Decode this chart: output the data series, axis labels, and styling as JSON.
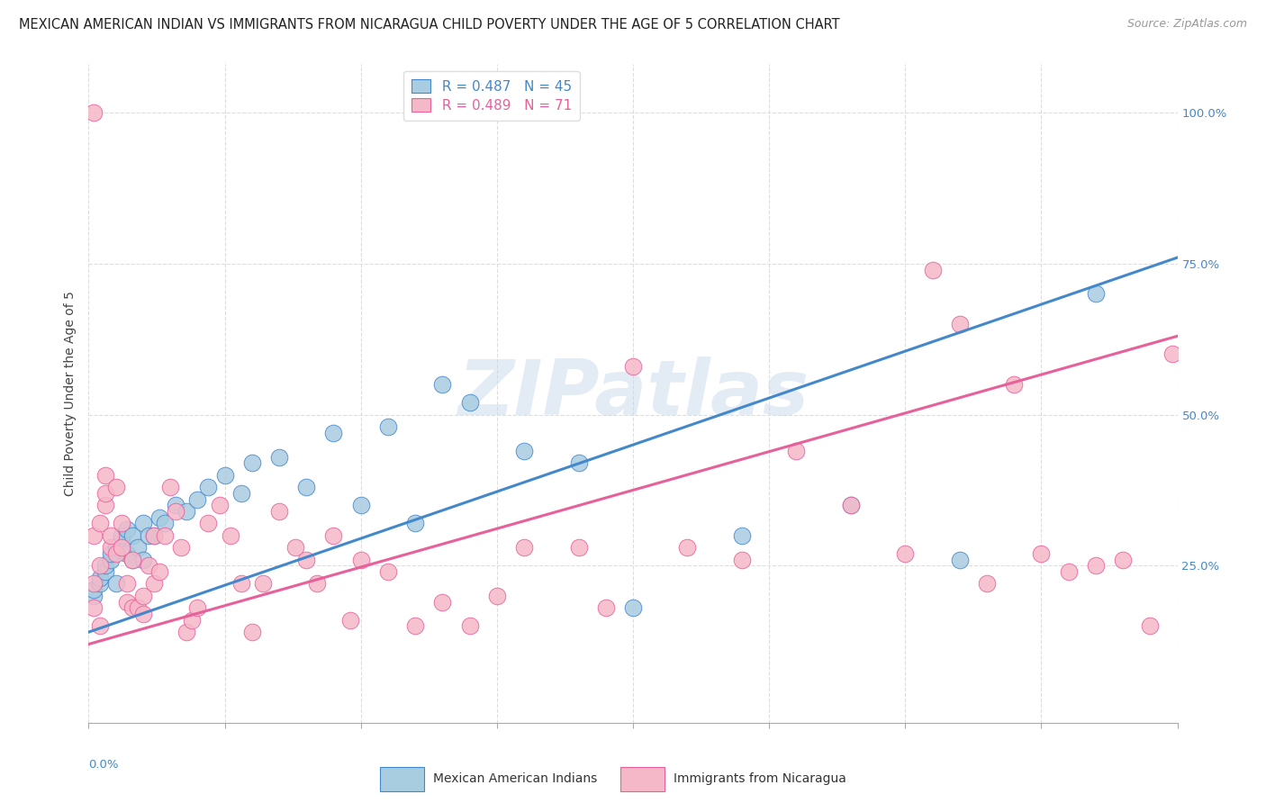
{
  "title": "MEXICAN AMERICAN INDIAN VS IMMIGRANTS FROM NICARAGUA CHILD POVERTY UNDER THE AGE OF 5 CORRELATION CHART",
  "source": "Source: ZipAtlas.com",
  "ylabel": "Child Poverty Under the Age of 5",
  "ytick_labels": [
    "25.0%",
    "50.0%",
    "75.0%",
    "100.0%"
  ],
  "ytick_values": [
    0.25,
    0.5,
    0.75,
    1.0
  ],
  "xlim": [
    0,
    0.2
  ],
  "ylim": [
    -0.01,
    1.08
  ],
  "blue_R": "0.487",
  "blue_N": "45",
  "pink_R": "0.489",
  "pink_N": "71",
  "blue_color": "#a8cce0",
  "pink_color": "#f5b8c8",
  "blue_edge_color": "#4488cc",
  "pink_edge_color": "#e8609a",
  "blue_line_color": "#4488cc",
  "pink_line_color": "#e8609a",
  "legend_label_blue": "Mexican American Indians",
  "legend_label_pink": "Immigrants from Nicaragua",
  "watermark": "ZIPatlas",
  "title_fontsize": 10.5,
  "source_fontsize": 9,
  "axis_label_fontsize": 10,
  "tick_fontsize": 9.5,
  "legend_fontsize": 11,
  "blue_dots_x": [
    0.001,
    0.001,
    0.002,
    0.002,
    0.003,
    0.003,
    0.004,
    0.004,
    0.005,
    0.005,
    0.006,
    0.006,
    0.007,
    0.007,
    0.008,
    0.008,
    0.009,
    0.01,
    0.01,
    0.011,
    0.012,
    0.013,
    0.014,
    0.016,
    0.018,
    0.02,
    0.022,
    0.025,
    0.028,
    0.03,
    0.035,
    0.04,
    0.045,
    0.05,
    0.055,
    0.06,
    0.065,
    0.07,
    0.08,
    0.09,
    0.1,
    0.12,
    0.14,
    0.16,
    0.185
  ],
  "blue_dots_y": [
    0.2,
    0.21,
    0.22,
    0.23,
    0.24,
    0.25,
    0.26,
    0.27,
    0.28,
    0.22,
    0.29,
    0.3,
    0.27,
    0.31,
    0.26,
    0.3,
    0.28,
    0.32,
    0.26,
    0.3,
    0.3,
    0.33,
    0.32,
    0.35,
    0.34,
    0.36,
    0.38,
    0.4,
    0.37,
    0.42,
    0.43,
    0.38,
    0.47,
    0.35,
    0.48,
    0.32,
    0.55,
    0.52,
    0.44,
    0.42,
    0.18,
    0.3,
    0.35,
    0.26,
    0.7
  ],
  "pink_dots_x": [
    0.001,
    0.001,
    0.001,
    0.002,
    0.002,
    0.002,
    0.003,
    0.003,
    0.003,
    0.004,
    0.004,
    0.005,
    0.005,
    0.006,
    0.006,
    0.007,
    0.007,
    0.008,
    0.008,
    0.009,
    0.01,
    0.01,
    0.011,
    0.012,
    0.012,
    0.013,
    0.014,
    0.015,
    0.016,
    0.017,
    0.018,
    0.019,
    0.02,
    0.022,
    0.024,
    0.026,
    0.028,
    0.03,
    0.032,
    0.035,
    0.038,
    0.04,
    0.042,
    0.045,
    0.048,
    0.05,
    0.055,
    0.06,
    0.065,
    0.07,
    0.075,
    0.08,
    0.09,
    0.095,
    0.1,
    0.11,
    0.12,
    0.13,
    0.14,
    0.15,
    0.155,
    0.16,
    0.165,
    0.17,
    0.175,
    0.18,
    0.185,
    0.19,
    0.195,
    0.199,
    0.001
  ],
  "pink_dots_y": [
    0.18,
    0.22,
    0.3,
    0.15,
    0.25,
    0.32,
    0.35,
    0.37,
    0.4,
    0.28,
    0.3,
    0.27,
    0.38,
    0.28,
    0.32,
    0.19,
    0.22,
    0.18,
    0.26,
    0.18,
    0.17,
    0.2,
    0.25,
    0.3,
    0.22,
    0.24,
    0.3,
    0.38,
    0.34,
    0.28,
    0.14,
    0.16,
    0.18,
    0.32,
    0.35,
    0.3,
    0.22,
    0.14,
    0.22,
    0.34,
    0.28,
    0.26,
    0.22,
    0.3,
    0.16,
    0.26,
    0.24,
    0.15,
    0.19,
    0.15,
    0.2,
    0.28,
    0.28,
    0.18,
    0.58,
    0.28,
    0.26,
    0.44,
    0.35,
    0.27,
    0.74,
    0.65,
    0.22,
    0.55,
    0.27,
    0.24,
    0.25,
    0.26,
    0.15,
    0.6,
    1.0
  ],
  "blue_line_x0": 0.0,
  "blue_line_y0": 0.14,
  "blue_line_x1": 0.2,
  "blue_line_y1": 0.76,
  "pink_line_x0": 0.0,
  "pink_line_y0": 0.12,
  "pink_line_x1": 0.2,
  "pink_line_y1": 0.63
}
